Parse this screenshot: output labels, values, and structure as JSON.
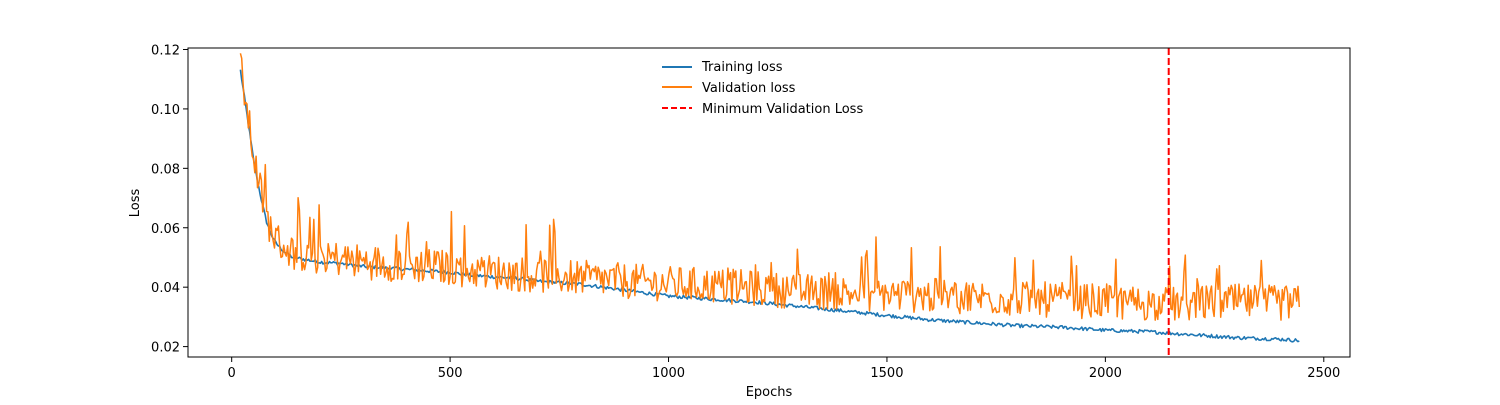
{
  "chart_data": {
    "type": "line",
    "title": "",
    "xlabel": "Epochs",
    "ylabel": "Loss",
    "xlim": [
      -100,
      2560
    ],
    "ylim": [
      0.0165,
      0.1205
    ],
    "xticks": [
      0,
      500,
      1000,
      1500,
      2000,
      2500
    ],
    "xtick_labels": [
      "0",
      "500",
      "1000",
      "1500",
      "2000",
      "2500"
    ],
    "yticks": [
      0.02,
      0.04,
      0.06,
      0.08,
      0.1,
      0.12
    ],
    "ytick_labels": [
      "0.02",
      "0.04",
      "0.06",
      "0.08",
      "0.10",
      "0.12"
    ],
    "grid": false,
    "legend": {
      "placement": "top-center",
      "entries": [
        "Training loss",
        "Validation loss",
        "Minimum Validation Loss"
      ]
    },
    "series": [
      {
        "name": "Training loss",
        "color": "#1f77b4",
        "style": "solid",
        "x": [
          20,
          30,
          40,
          50,
          60,
          70,
          80,
          90,
          100,
          120,
          140,
          160,
          180,
          200,
          250,
          300,
          350,
          400,
          450,
          500,
          550,
          600,
          650,
          700,
          750,
          800,
          850,
          900,
          950,
          1000,
          1100,
          1200,
          1300,
          1400,
          1500,
          1600,
          1700,
          1800,
          1900,
          2000,
          2100,
          2150,
          2200,
          2300,
          2400,
          2445
        ],
        "y": [
          0.113,
          0.103,
          0.093,
          0.083,
          0.075,
          0.068,
          0.062,
          0.058,
          0.055,
          0.052,
          0.05,
          0.0495,
          0.049,
          0.0485,
          0.048,
          0.047,
          0.0465,
          0.046,
          0.0455,
          0.045,
          0.044,
          0.0435,
          0.043,
          0.042,
          0.0415,
          0.041,
          0.04,
          0.039,
          0.038,
          0.037,
          0.036,
          0.035,
          0.0335,
          0.032,
          0.0305,
          0.029,
          0.028,
          0.027,
          0.0265,
          0.0255,
          0.025,
          0.0245,
          0.024,
          0.023,
          0.0225,
          0.022
        ]
      },
      {
        "name": "Validation loss",
        "color": "#ff7f0e",
        "style": "solid",
        "x": [
          20,
          30,
          40,
          50,
          60,
          70,
          80,
          90,
          100,
          120,
          140,
          160,
          180,
          200,
          250,
          300,
          350,
          400,
          450,
          500,
          550,
          600,
          650,
          700,
          750,
          800,
          850,
          900,
          950,
          1000,
          1100,
          1200,
          1300,
          1400,
          1500,
          1600,
          1700,
          1800,
          1900,
          2000,
          2100,
          2150,
          2200,
          2300,
          2400,
          2445
        ],
        "y": [
          0.114,
          0.104,
          0.094,
          0.084,
          0.076,
          0.069,
          0.063,
          0.059,
          0.056,
          0.053,
          0.051,
          0.0505,
          0.05,
          0.0495,
          0.049,
          0.048,
          0.0475,
          0.047,
          0.0465,
          0.046,
          0.045,
          0.0445,
          0.044,
          0.0435,
          0.043,
          0.0425,
          0.042,
          0.0415,
          0.041,
          0.0405,
          0.04,
          0.039,
          0.038,
          0.0375,
          0.037,
          0.0365,
          0.036,
          0.0355,
          0.035,
          0.0345,
          0.034,
          0.0335,
          0.034,
          0.0345,
          0.034,
          0.034
        ],
        "noise_amplitude": 0.012
      }
    ],
    "annotations": [
      {
        "name": "Minimum Validation Loss",
        "type": "vline",
        "x": 2145,
        "color": "#ff0000",
        "style": "dashed"
      }
    ]
  }
}
